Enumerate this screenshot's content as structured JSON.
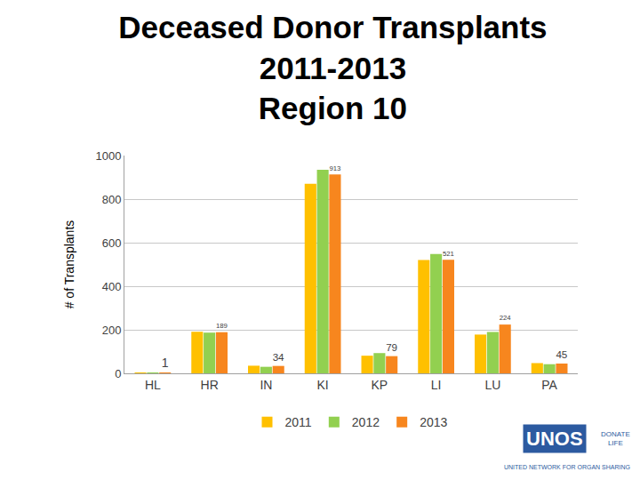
{
  "chart_data": {
    "type": "bar",
    "title": "Deceased Donor Transplants\n2011-2013\nRegion 10",
    "y_label": "# of Transplants",
    "categories": [
      "HL",
      "HR",
      "IN",
      "KI",
      "KP",
      "LI",
      "LU",
      "PA"
    ],
    "series": [
      {
        "name": "2011",
        "color": "#FFC000",
        "values": [
          2,
          191,
          35,
          870,
          81,
          520,
          178,
          47
        ]
      },
      {
        "name": "2012",
        "color": "#92D050",
        "values": [
          1,
          187,
          30,
          935,
          93,
          548,
          190,
          42
        ]
      },
      {
        "name": "2013",
        "color": "#F7861E",
        "values": [
          1,
          189,
          34,
          913,
          79,
          521,
          224,
          45
        ],
        "data_labels": true
      }
    ],
    "ylim": [
      0,
      1000
    ],
    "yticks": [
      0,
      200,
      400,
      600,
      800,
      1000
    ],
    "grid": true,
    "legend": "bottom",
    "annotations": [
      "UNOS",
      "DONATE LIFE",
      "UNITED NETWORK FOR ORGAN SHARING"
    ]
  }
}
